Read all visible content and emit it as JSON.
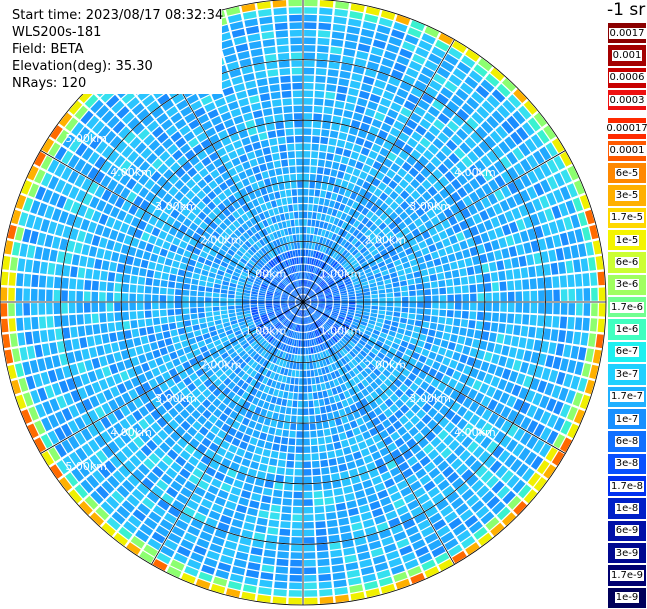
{
  "header": {
    "start_time": "Start time: 2023/08/17 08:32:34",
    "instrument": "WLS200s-181",
    "field": "Field: BETA",
    "elevation": "Elevation(deg): 35.30",
    "nrays": "NRays: 120"
  },
  "colorbar": {
    "unit": "-1 sr",
    "labels": [
      "0.0017",
      "0.001",
      "0.0006",
      "0.0003",
      "0.00017",
      "0.0001",
      "6e-5",
      "3e-5",
      "1.7e-5",
      "1e-5",
      "6e-6",
      "3e-6",
      "1.7e-6",
      "1e-6",
      "6e-7",
      "3e-7",
      "1.7e-7",
      "1e-7",
      "6e-8",
      "3e-8",
      "1.7e-8",
      "1e-8",
      "6e-9",
      "3e-9",
      "1.7e-9",
      "1e-9"
    ],
    "colors": [
      "#8b0000",
      "#a40000",
      "#c80000",
      "#ee1010",
      "#ff2a00",
      "#ff5a00",
      "#ff8800",
      "#ffb000",
      "#ffd800",
      "#f4f400",
      "#ccff33",
      "#a0ff60",
      "#70ff90",
      "#40ffc0",
      "#1ef0f0",
      "#20d0ff",
      "#20b0ff",
      "#1890ff",
      "#1070ff",
      "#0850ff",
      "#0030f0",
      "#0020c8",
      "#0010a8",
      "#000890",
      "#000070",
      "#00005a"
    ]
  },
  "chart_data": {
    "type": "heatmap",
    "projection": "polar (PPI scan)",
    "field": "BETA",
    "rays": 120,
    "range_rings_km": [
      1,
      2,
      3,
      4,
      5
    ],
    "range_labels": [
      "1.00km",
      "2.00km",
      "3.00km",
      "4.00km",
      "5.00km"
    ],
    "max_range_km": 5.0,
    "azimuth_lines": 12,
    "color_scale": "log",
    "value_range": [
      1e-09,
      0.0017
    ],
    "typical_values": {
      "near_range_km_0_to_1": 1e-08,
      "mid_range_km_1_to_4": 3e-08,
      "edge_range_km_4.8_to_5": 3e-06
    }
  }
}
